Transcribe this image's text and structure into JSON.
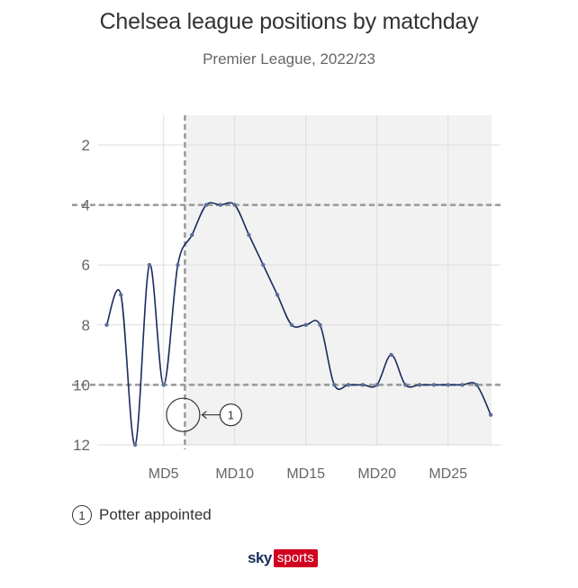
{
  "header": {
    "title": "Chelsea league positions by matchday",
    "subtitle": "Premier League, 2022/23"
  },
  "legend": {
    "marker": "1",
    "text": "Potter appointed"
  },
  "logo": {
    "sky": "sky",
    "sports": "sports",
    "sports_color": "#d2001f",
    "sky_color": "#1a2b5c"
  },
  "chart_data": {
    "type": "line",
    "title": "Chelsea league positions by matchday",
    "subtitle": "Premier League, 2022/23",
    "xlabel": "",
    "ylabel": "",
    "x": [
      1,
      2,
      3,
      4,
      5,
      6,
      7,
      8,
      9,
      10,
      11,
      12,
      13,
      14,
      15,
      16,
      17,
      18,
      19,
      20,
      21,
      22,
      23,
      24,
      25,
      26,
      27,
      28
    ],
    "series": [
      {
        "values": [
          8,
          7,
          12,
          6,
          10,
          6,
          5,
          4,
          4,
          4,
          5,
          6,
          7,
          8,
          8,
          8,
          10,
          10,
          10,
          10,
          9,
          10,
          10,
          10,
          10,
          10,
          10,
          11
        ]
      }
    ],
    "x_ticks": [
      5,
      10,
      15,
      20,
      25
    ],
    "x_tick_labels": [
      "MD5",
      "MD10",
      "MD15",
      "MD20",
      "MD25"
    ],
    "y_ticks": [
      2,
      4,
      6,
      8,
      10,
      12
    ],
    "y_tick_labels": [
      "2",
      "4",
      "6",
      "8",
      "10",
      "12"
    ],
    "xlim": [
      0.5,
      28
    ],
    "ylim": [
      12,
      1
    ],
    "y_inverted": true,
    "grid": true,
    "shaded_region_x": [
      6.5,
      28
    ],
    "shaded_color": "#f2f2f2",
    "line_color": "#1a2b5c",
    "reference_lines_y": [
      4,
      10
    ],
    "reference_line_x": 6.5,
    "annotations": [
      {
        "label": "1",
        "x": 6.5,
        "y": 11,
        "text": "Potter appointed"
      }
    ]
  }
}
